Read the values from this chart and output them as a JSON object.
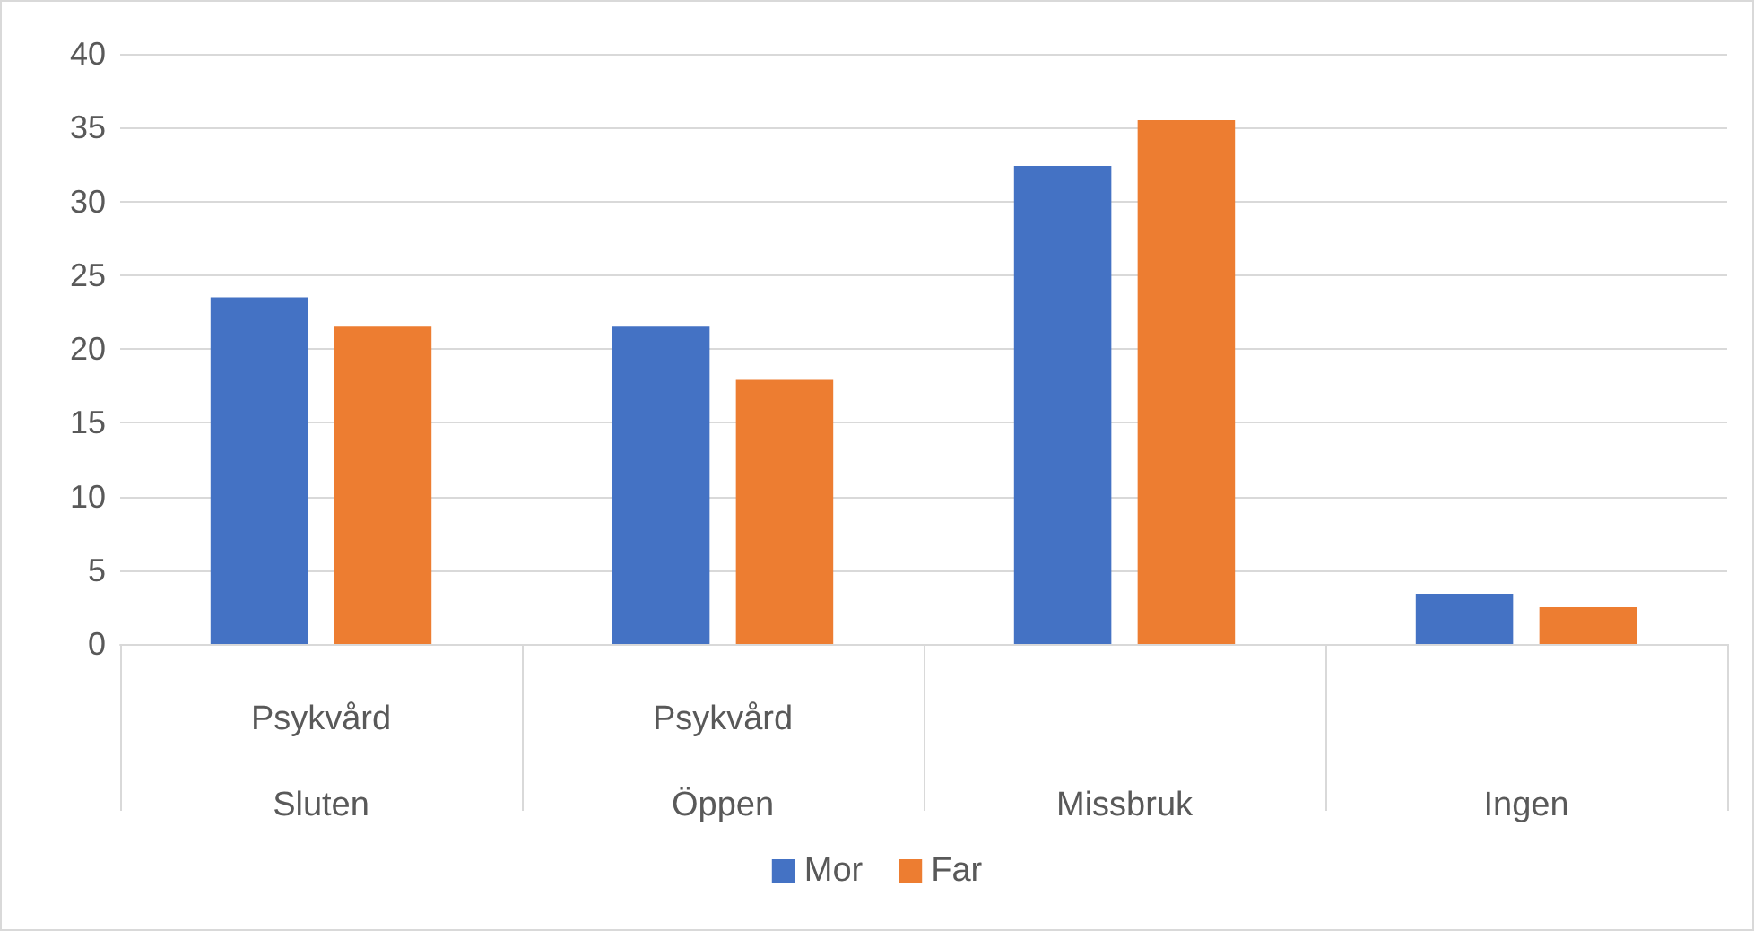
{
  "chart_data": {
    "type": "bar",
    "categories": [
      "Psykvård\nSluten",
      "Psykvård\nÖppen",
      "\nMissbruk",
      "\nIngen"
    ],
    "series": [
      {
        "name": "Mor",
        "color": "#4472c4",
        "values": [
          23.5,
          21.5,
          32.4,
          3.4
        ]
      },
      {
        "name": "Far",
        "color": "#ed7d31",
        "values": [
          21.5,
          17.9,
          35.5,
          2.5
        ]
      }
    ],
    "ylim": [
      0,
      40
    ],
    "yticks": [
      0,
      5,
      10,
      15,
      20,
      25,
      30,
      35,
      40
    ],
    "grid": "y",
    "legend": "bottom"
  }
}
